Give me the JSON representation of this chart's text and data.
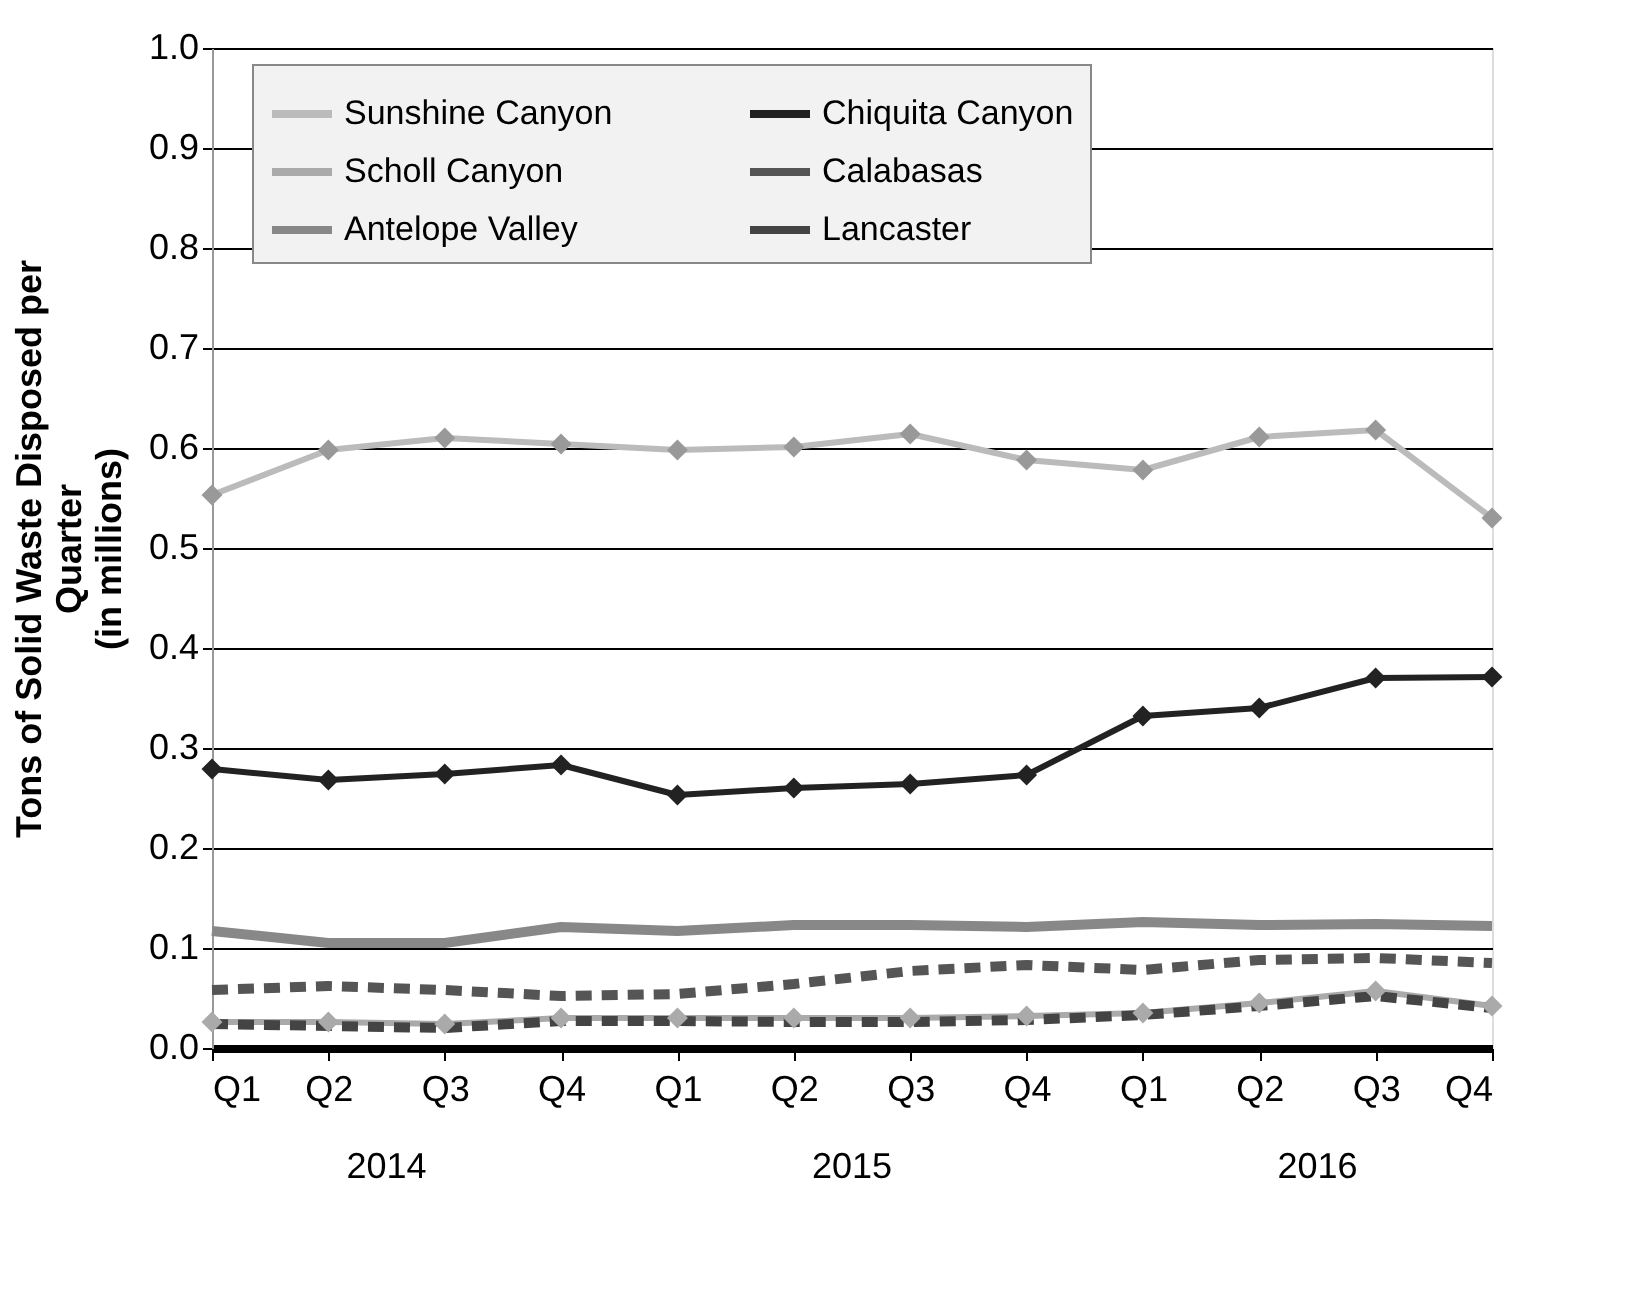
{
  "chart_data": {
    "type": "line",
    "ylabel": "Tons of Solid Waste Disposed per\nQuarter\n(in millions)",
    "categories": [
      "Q1",
      "Q2",
      "Q3",
      "Q4",
      "Q1",
      "Q2",
      "Q3",
      "Q4",
      "Q1",
      "Q2",
      "Q3",
      "Q4"
    ],
    "annotations": [
      "2014",
      "2015",
      "2016"
    ],
    "ylim": [
      0,
      1.0
    ],
    "yticks": [
      {
        "value": 0,
        "label": "0.0"
      },
      0.1,
      0.2,
      0.3,
      0.4,
      0.5,
      0.6,
      0.7,
      0.8,
      0.9,
      {
        "value": 1.0,
        "label": "1.0"
      }
    ],
    "grid": "y",
    "legend": "top",
    "series": [
      {
        "name": "Sunshine Canyon",
        "color": "#bbbbbb",
        "marker": "diamond",
        "line_style": "solid",
        "values": [
          0.553,
          0.598,
          0.61,
          0.604,
          0.598,
          0.601,
          0.614,
          0.588,
          0.578,
          0.611,
          0.618,
          0.53
        ]
      },
      {
        "name": "Chiquita Canyon",
        "color": "#222222",
        "marker": "diamond",
        "line_style": "solid",
        "values": [
          0.279,
          0.268,
          0.274,
          0.283,
          0.253,
          0.26,
          0.264,
          0.273,
          0.332,
          0.34,
          0.37,
          0.371
        ]
      },
      {
        "name": "Scholl Canyon",
        "color": "#aaaaaa",
        "marker": "diamond",
        "line_style": "solid",
        "values": [
          0.026,
          0.026,
          0.024,
          0.03,
          0.03,
          0.03,
          0.03,
          0.032,
          0.035,
          0.045,
          0.057,
          0.042
        ]
      },
      {
        "name": "Calabasas",
        "color": "#555555",
        "marker": "none",
        "line_style": "dashed",
        "values": [
          0.058,
          0.062,
          0.058,
          0.052,
          0.054,
          0.064,
          0.077,
          0.083,
          0.078,
          0.088,
          0.09,
          0.085
        ]
      },
      {
        "name": "Antelope Valley",
        "color": "#888888",
        "marker": "none",
        "line_style": "solid",
        "values": [
          0.117,
          0.105,
          0.105,
          0.121,
          0.117,
          0.123,
          0.123,
          0.121,
          0.126,
          0.123,
          0.124,
          0.122
        ]
      },
      {
        "name": "Lancaster",
        "color": "#444444",
        "marker": "none",
        "line_style": "dashed",
        "values": [
          0.024,
          0.022,
          0.02,
          0.027,
          0.027,
          0.026,
          0.026,
          0.028,
          0.033,
          0.042,
          0.052,
          0.04
        ]
      }
    ]
  }
}
